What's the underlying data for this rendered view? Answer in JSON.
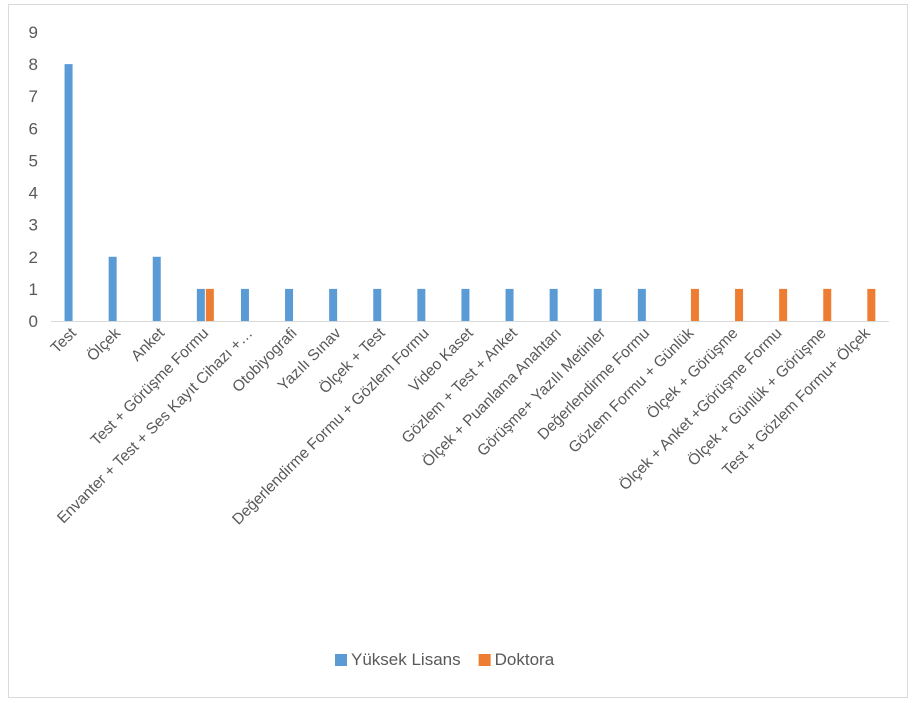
{
  "chart_data": {
    "type": "bar",
    "title": "",
    "xlabel": "",
    "ylabel": "",
    "ylim": [
      0,
      9
    ],
    "yticks": [
      0,
      1,
      2,
      3,
      4,
      5,
      6,
      7,
      8,
      9
    ],
    "grid": false,
    "legend_position": "bottom",
    "categories": [
      "Test",
      "Ölçek",
      "Anket",
      "Test + Görüşme Formu",
      "Envanter + Test + Ses Kayıt Cihazı +…",
      "Otobiyografi",
      "Yazılı Sınav",
      "Ölçek + Test",
      "Değerlendirme Formu + Gözlem Formu",
      "Video Kaset",
      "Gözlem + Test + Anket",
      "Ölçek + Puanlama Anahtarı",
      "Görüşme+ Yazılı Metinler",
      "Değerlendirme Formu",
      "Gözlem Formu + Günlük",
      "Ölçek + Görüşme",
      "Ölçek + Anket +Görüşme Formu",
      "Ölçek + Günlük + Görüşme",
      "Test + Gözlem Formu+ Ölçek"
    ],
    "series": [
      {
        "name": "Yüksek Lisans",
        "color": "#5b9bd5",
        "values": [
          8,
          2,
          2,
          1,
          1,
          1,
          1,
          1,
          1,
          1,
          1,
          1,
          1,
          1,
          0,
          0,
          0,
          0,
          0
        ]
      },
      {
        "name": "Doktora",
        "color": "#ed7d31",
        "values": [
          0,
          0,
          0,
          1,
          0,
          0,
          0,
          0,
          0,
          0,
          0,
          0,
          0,
          0,
          1,
          1,
          1,
          1,
          1
        ]
      }
    ]
  }
}
